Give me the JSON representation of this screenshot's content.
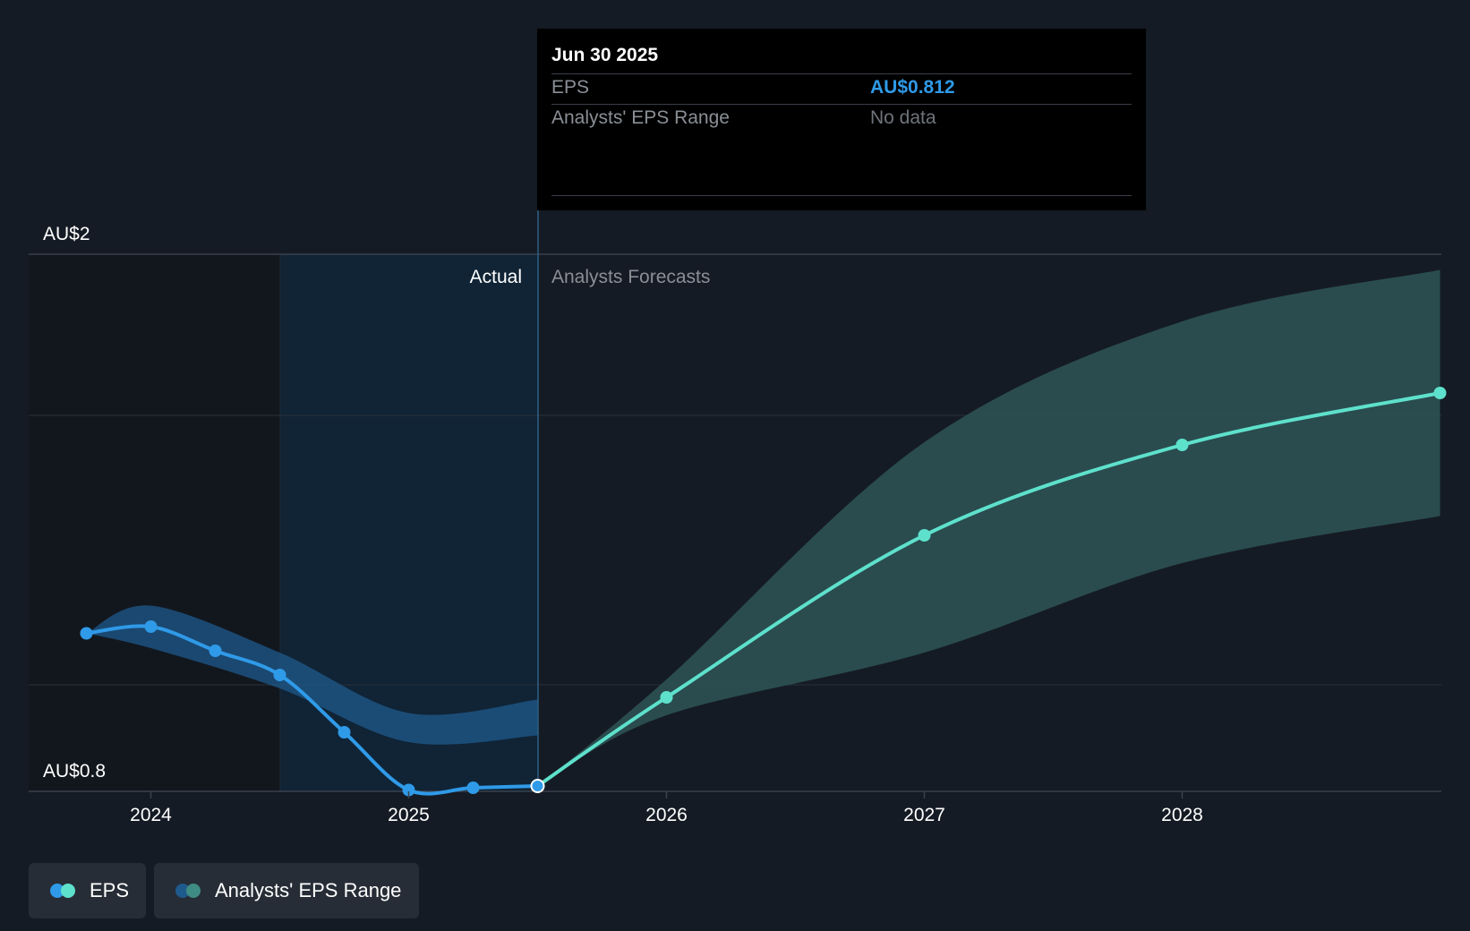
{
  "chart_data": {
    "type": "line",
    "title": "",
    "xlabel": "",
    "ylabel": "",
    "x_ticks": [
      "2024",
      "2025",
      "2026",
      "2027",
      "2028"
    ],
    "y_labels": {
      "top": "AU$2",
      "bottom": "AU$0.8"
    },
    "ylim": [
      0.8,
      2.0
    ],
    "section_labels": {
      "actual": "Actual",
      "forecast": "Analysts Forecasts"
    },
    "series": [
      {
        "name": "EPS",
        "kind": "actual",
        "points": [
          {
            "x": 2023.75,
            "y": 1.153
          },
          {
            "x": 2024.0,
            "y": 1.168
          },
          {
            "x": 2024.25,
            "y": 1.114
          },
          {
            "x": 2024.5,
            "y": 1.06
          },
          {
            "x": 2024.75,
            "y": 0.932
          },
          {
            "x": 2025.0,
            "y": 0.803
          },
          {
            "x": 2025.25,
            "y": 0.808
          },
          {
            "x": 2025.5,
            "y": 0.812
          }
        ]
      },
      {
        "name": "EPS",
        "kind": "forecast",
        "points": [
          {
            "x": 2025.5,
            "y": 0.812
          },
          {
            "x": 2026.0,
            "y": 1.01
          },
          {
            "x": 2027.0,
            "y": 1.372
          },
          {
            "x": 2028.0,
            "y": 1.574
          },
          {
            "x": 2029.0,
            "y": 1.69
          }
        ]
      },
      {
        "name": "Analysts' EPS Range",
        "kind": "actual_range",
        "points": [
          {
            "x": 2023.75,
            "y_low": 1.153,
            "y_high": 1.153
          },
          {
            "x": 2024.0,
            "y_low": 1.12,
            "y_high": 1.215
          },
          {
            "x": 2024.5,
            "y_low": 1.03,
            "y_high": 1.11
          },
          {
            "x": 2025.0,
            "y_low": 0.91,
            "y_high": 0.975
          },
          {
            "x": 2025.5,
            "y_low": 0.925,
            "y_high": 1.005
          }
        ]
      },
      {
        "name": "Analysts' EPS Range",
        "kind": "forecast_range",
        "points": [
          {
            "x": 2025.5,
            "y_low": 0.812,
            "y_high": 0.812
          },
          {
            "x": 2026.0,
            "y_low": 0.97,
            "y_high": 1.05
          },
          {
            "x": 2027.0,
            "y_low": 1.11,
            "y_high": 1.58
          },
          {
            "x": 2028.0,
            "y_low": 1.31,
            "y_high": 1.85
          },
          {
            "x": 2029.0,
            "y_low": 1.415,
            "y_high": 1.965
          }
        ]
      }
    ],
    "highlight_x": 2025.5,
    "colors": {
      "actual": "#2f9ae8",
      "forecast": "#5ee1cc",
      "forecast_band": "#2c5254",
      "actual_band": "#1f5a8c"
    }
  },
  "tooltip": {
    "date": "Jun 30 2025",
    "eps_label": "EPS",
    "eps_value": "AU$0.812",
    "range_label": "Analysts' EPS Range",
    "range_value": "No data"
  },
  "legend": [
    {
      "label": "EPS"
    },
    {
      "label": "Analysts' EPS Range"
    }
  ]
}
